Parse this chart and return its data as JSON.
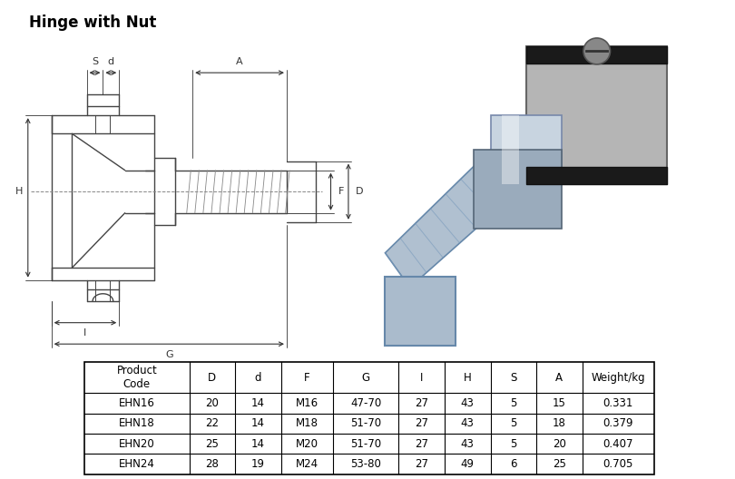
{
  "title": "Hinge with Nut",
  "title_fontsize": 12,
  "title_fontweight": "bold",
  "background_color": "#ffffff",
  "table_headers": [
    "Product\nCode",
    "D",
    "d",
    "F",
    "G",
    "I",
    "H",
    "S",
    "A",
    "Weight/kg"
  ],
  "table_rows": [
    [
      "EHN16",
      "20",
      "14",
      "M16",
      "47-70",
      "27",
      "43",
      "5",
      "15",
      "0.331"
    ],
    [
      "EHN18",
      "22",
      "14",
      "M18",
      "51-70",
      "27",
      "43",
      "5",
      "18",
      "0.379"
    ],
    [
      "EHN20",
      "25",
      "14",
      "M20",
      "51-70",
      "27",
      "43",
      "5",
      "20",
      "0.407"
    ],
    [
      "EHN24",
      "28",
      "19",
      "M24",
      "53-80",
      "27",
      "49",
      "6",
      "25",
      "0.705"
    ]
  ],
  "line_color": "#444444",
  "dim_color": "#333333",
  "text_color": "#000000",
  "table_font_size": 8.5
}
